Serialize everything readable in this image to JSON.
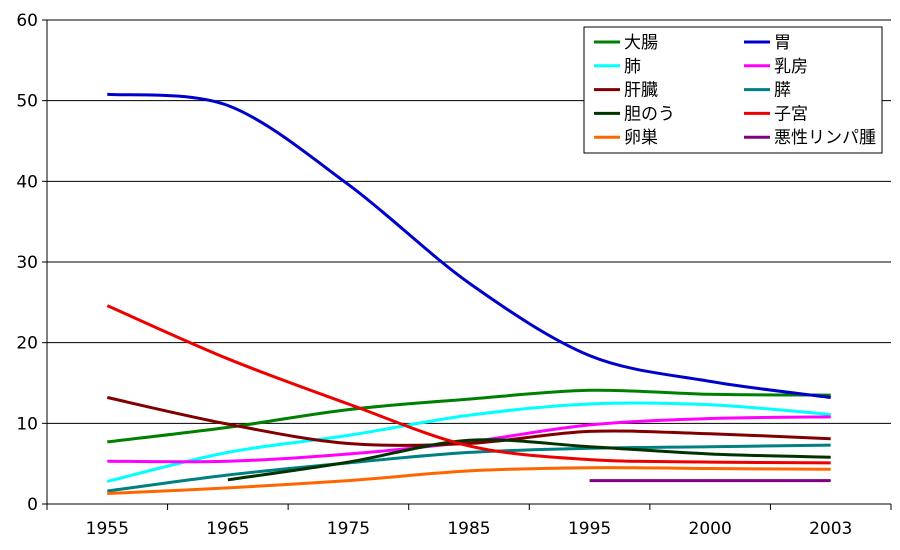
{
  "chart_data": {
    "type": "line",
    "title": "",
    "xlabel": "",
    "ylabel": "",
    "categories": [
      "1955",
      "1965",
      "1975",
      "1985",
      "1995",
      "2000",
      "2003"
    ],
    "ylim": [
      0,
      60
    ],
    "yticks": [
      0,
      10,
      20,
      30,
      40,
      50,
      60
    ],
    "grid": "horizontal",
    "legend_position": "top-right",
    "series": [
      {
        "name": "大腸",
        "color": "#008000",
        "values": [
          7.7,
          9.5,
          11.7,
          13.0,
          14.1,
          13.6,
          13.5
        ]
      },
      {
        "name": "胃",
        "color": "#0000cc",
        "values": [
          50.8,
          49.4,
          39.6,
          27.4,
          18.4,
          15.2,
          13.2
        ]
      },
      {
        "name": "肺",
        "color": "#00ffff",
        "values": [
          2.8,
          6.4,
          8.5,
          11.0,
          12.4,
          12.3,
          11.1
        ]
      },
      {
        "name": "乳房",
        "color": "#ff00ff",
        "values": [
          5.3,
          5.3,
          6.2,
          7.7,
          9.8,
          10.6,
          10.8
        ]
      },
      {
        "name": "肝臓",
        "color": "#800000",
        "values": [
          13.2,
          9.9,
          7.5,
          7.5,
          9.0,
          8.7,
          8.1
        ]
      },
      {
        "name": "膵",
        "color": "#008080",
        "values": [
          1.6,
          3.6,
          5.1,
          6.4,
          6.9,
          7.1,
          7.3
        ]
      },
      {
        "name": "胆のう",
        "color": "#003300",
        "values": [
          null,
          3.0,
          5.2,
          7.9,
          7.1,
          6.2,
          5.8
        ]
      },
      {
        "name": "子宮",
        "color": "#ee0000",
        "values": [
          24.6,
          18.0,
          12.4,
          7.2,
          5.5,
          5.2,
          5.1
        ]
      },
      {
        "name": "卵巣",
        "color": "#ff6600",
        "values": [
          1.3,
          2.0,
          2.9,
          4.1,
          4.5,
          4.4,
          4.3
        ]
      },
      {
        "name": "悪性リンパ腫",
        "color": "#800080",
        "values": [
          null,
          null,
          null,
          null,
          2.9,
          2.9,
          2.9
        ]
      }
    ]
  }
}
